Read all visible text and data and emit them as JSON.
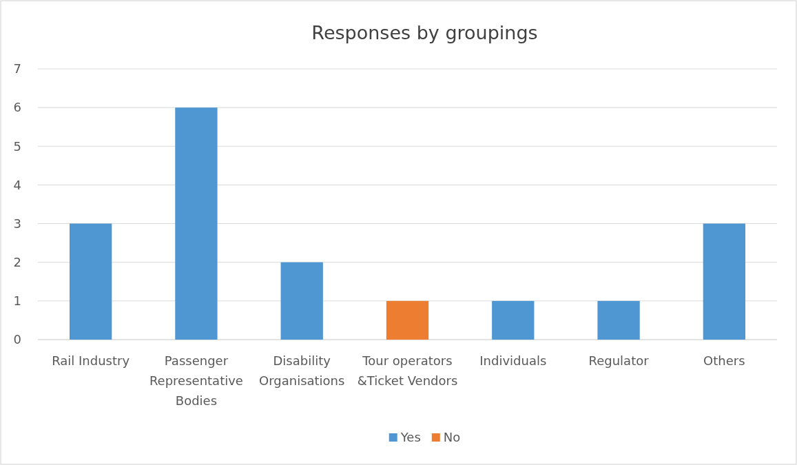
{
  "chart_data": {
    "type": "bar",
    "title": "Responses by groupings",
    "stacked": true,
    "categories": [
      "Rail Industry",
      "Passenger Representative Bodies",
      "Disability Organisations",
      "Tour operators &Ticket Vendors",
      "Individuals",
      "Regulator",
      "Others"
    ],
    "series": [
      {
        "name": "Yes",
        "color": "#4f97d3",
        "values": [
          3,
          6,
          2,
          null,
          1,
          1,
          3
        ]
      },
      {
        "name": "No",
        "color": "#ed7d31",
        "values": [
          null,
          null,
          null,
          1,
          null,
          null,
          null
        ]
      }
    ],
    "ylim": [
      0,
      7
    ],
    "yticks": [
      0,
      1,
      2,
      3,
      4,
      5,
      6,
      7
    ],
    "grid": "y",
    "legend": "bottom"
  }
}
